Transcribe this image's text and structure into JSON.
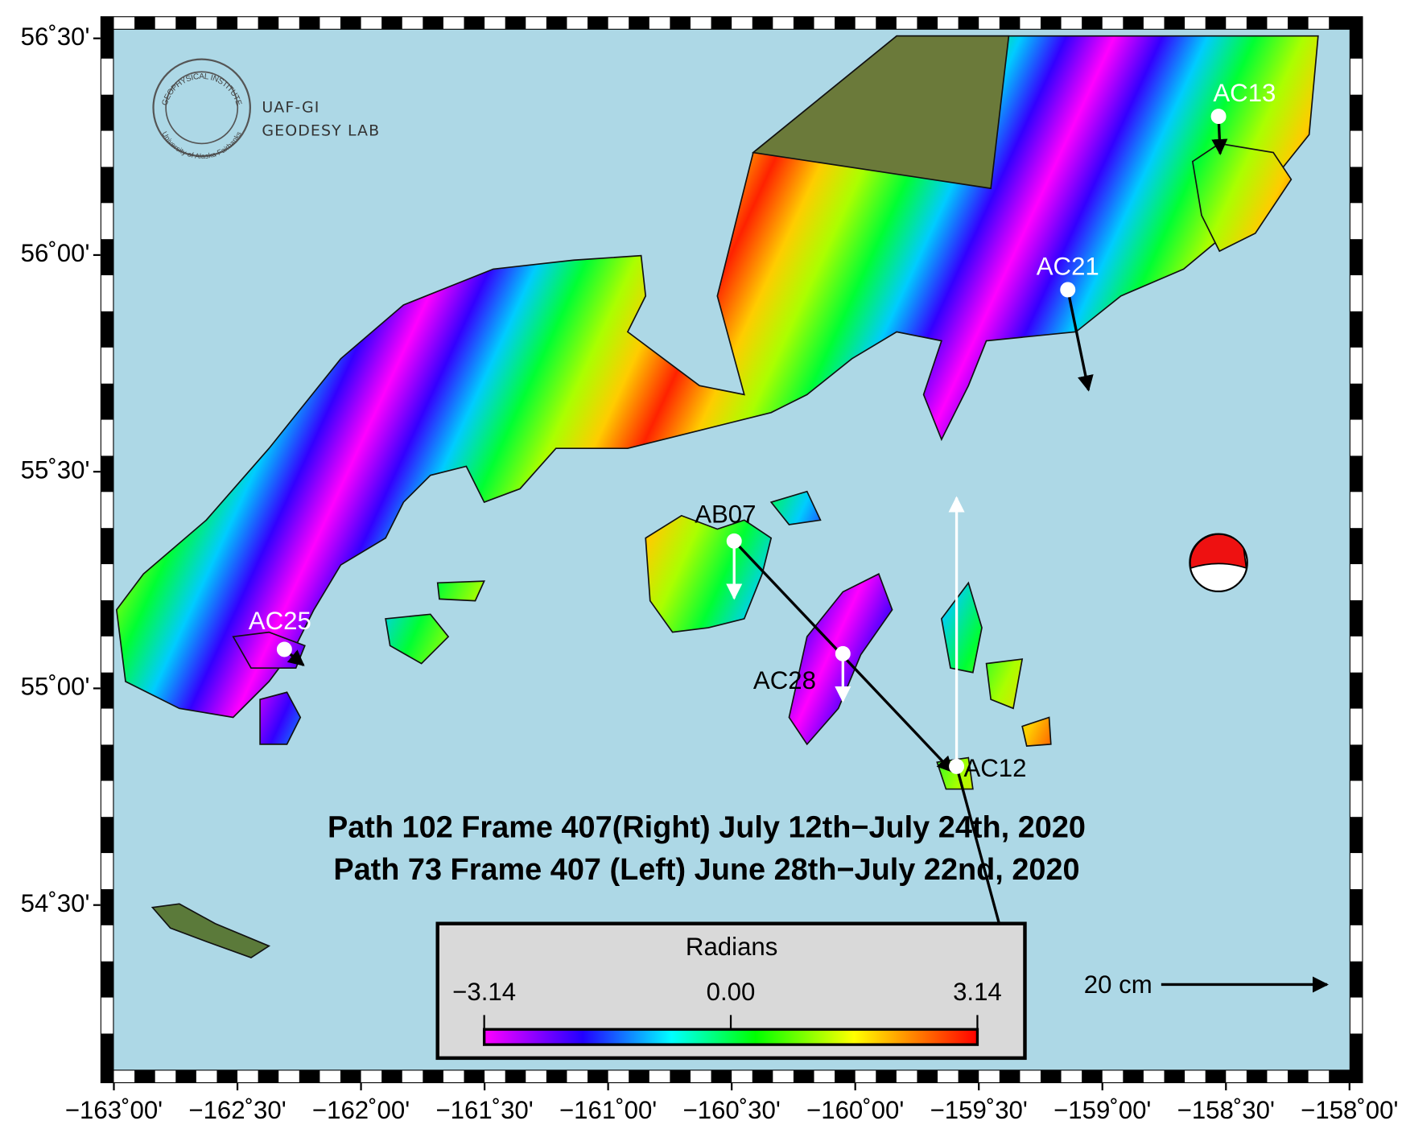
{
  "title_lines": [
    "Path 102 Frame 407(Right) July 12th−July 24th, 2020",
    "Path 73 Frame 407 (Left) June 28th−July 22nd, 2020"
  ],
  "logo": {
    "ring_top": "GEOPHYSICAL INSTITUTE",
    "ring_bottom": "University of Alaska Fairbanks",
    "line1": "UAF-GI",
    "line2": "GEODESY LAB"
  },
  "map": {
    "xlim": [
      -163,
      -158
    ],
    "ylim": [
      54.12,
      56.52
    ],
    "xticks": [
      {
        "value": -163,
        "label": "−163˚00'"
      },
      {
        "value": -162.5,
        "label": "−162˚30'"
      },
      {
        "value": -162,
        "label": "−162˚00'"
      },
      {
        "value": -161.5,
        "label": "−161˚30'"
      },
      {
        "value": -161,
        "label": "−161˚00'"
      },
      {
        "value": -160.5,
        "label": "−160˚30'"
      },
      {
        "value": -160,
        "label": "−160˚00'"
      },
      {
        "value": -159.5,
        "label": "−159˚30'"
      },
      {
        "value": -159,
        "label": "−159˚00'"
      },
      {
        "value": -158.5,
        "label": "−158˚30'"
      },
      {
        "value": -158,
        "label": "−158˚00'"
      }
    ],
    "yticks": [
      {
        "value": 54.5,
        "label": "54˚30'"
      },
      {
        "value": 55,
        "label": "55˚00'"
      },
      {
        "value": 55.5,
        "label": "55˚30'"
      },
      {
        "value": 56,
        "label": "56˚00'"
      },
      {
        "value": 56.5,
        "label": "56˚30'"
      }
    ]
  },
  "stations": [
    {
      "name": "AC13",
      "lon": -158.53,
      "lat": 56.32,
      "east": 0.2,
      "north": -4.5,
      "up": null
    },
    {
      "name": "AC21",
      "lon": -159.14,
      "lat": 55.92,
      "east": 2.5,
      "north": -12.1,
      "up": null
    },
    {
      "name": "AB07",
      "lon": -160.49,
      "lat": 55.34,
      "east": 26.3,
      "north": -27.8,
      "up": -6.9
    },
    {
      "name": "AC28",
      "lon": -160.05,
      "lat": 55.08,
      "east": null,
      "north": null,
      "up": -5.7
    },
    {
      "name": "AC12",
      "lon": -159.59,
      "lat": 54.82,
      "east": 6.2,
      "north": -22.9,
      "up": 32.4
    },
    {
      "name": "AC25",
      "lon": -162.31,
      "lat": 55.09,
      "east": 2.3,
      "north": -1.9,
      "up": null
    }
  ],
  "event": {
    "lon": -158.53,
    "lat": 55.29
  },
  "colorbar": {
    "title": "Radians",
    "lim": [
      -3.14,
      3.14
    ],
    "ticks": [
      {
        "value": -3.14,
        "label": "−3.14"
      },
      {
        "value": 0,
        "label": "0.00"
      },
      3.14
    ]
  },
  "scale": {
    "value": 20,
    "label": "20 cm"
  }
}
